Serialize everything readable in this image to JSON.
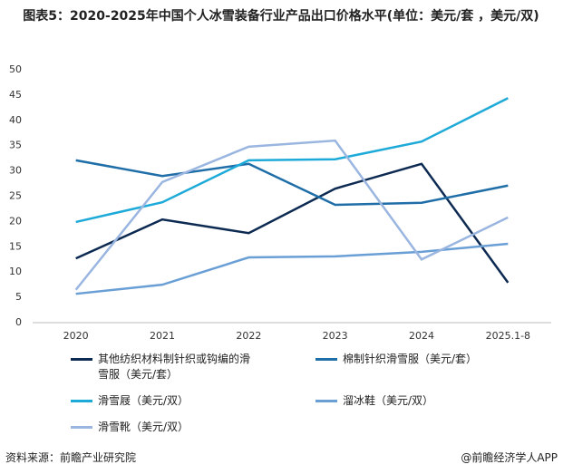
{
  "chart_data": {
    "type": "line",
    "title": "图表5：2020-2025年中国个人冰雪装备行业产品出口价格水平(单位：美元/套 ，美元/双)",
    "categories": [
      "2020",
      "2021",
      "2022",
      "2023",
      "2024",
      "2025.1-8"
    ],
    "series": [
      {
        "name": "其他纺织材料制针织或钩编的滑雪服（美元/套）",
        "color": "#0d2a52",
        "values": [
          12.7,
          20.4,
          17.7,
          26.5,
          31.4,
          7.9
        ]
      },
      {
        "name": "棉制针织滑雪服（美元/套）",
        "color": "#1f6ea8",
        "values": [
          32.1,
          29.0,
          31.4,
          23.3,
          23.7,
          27.1
        ]
      },
      {
        "name": "滑雪屐（美元/双）",
        "color": "#1eaad8",
        "values": [
          19.9,
          23.8,
          32.1,
          32.3,
          35.8,
          44.4
        ]
      },
      {
        "name": "溜冰鞋（美元/双）",
        "color": "#6a9fd6",
        "values": [
          5.7,
          7.5,
          12.9,
          13.1,
          14.0,
          15.6
        ]
      },
      {
        "name": "滑雪靴（美元/双）",
        "color": "#9ab6e0",
        "values": [
          6.5,
          27.8,
          34.8,
          36.0,
          12.5,
          20.8
        ]
      }
    ],
    "ylim": [
      0,
      50
    ],
    "yticks": [
      0,
      5,
      10,
      15,
      20,
      25,
      30,
      35,
      40,
      45,
      50
    ],
    "source": "资料来源：前瞻产业研究院",
    "brand": "@前瞻经济学人APP"
  }
}
